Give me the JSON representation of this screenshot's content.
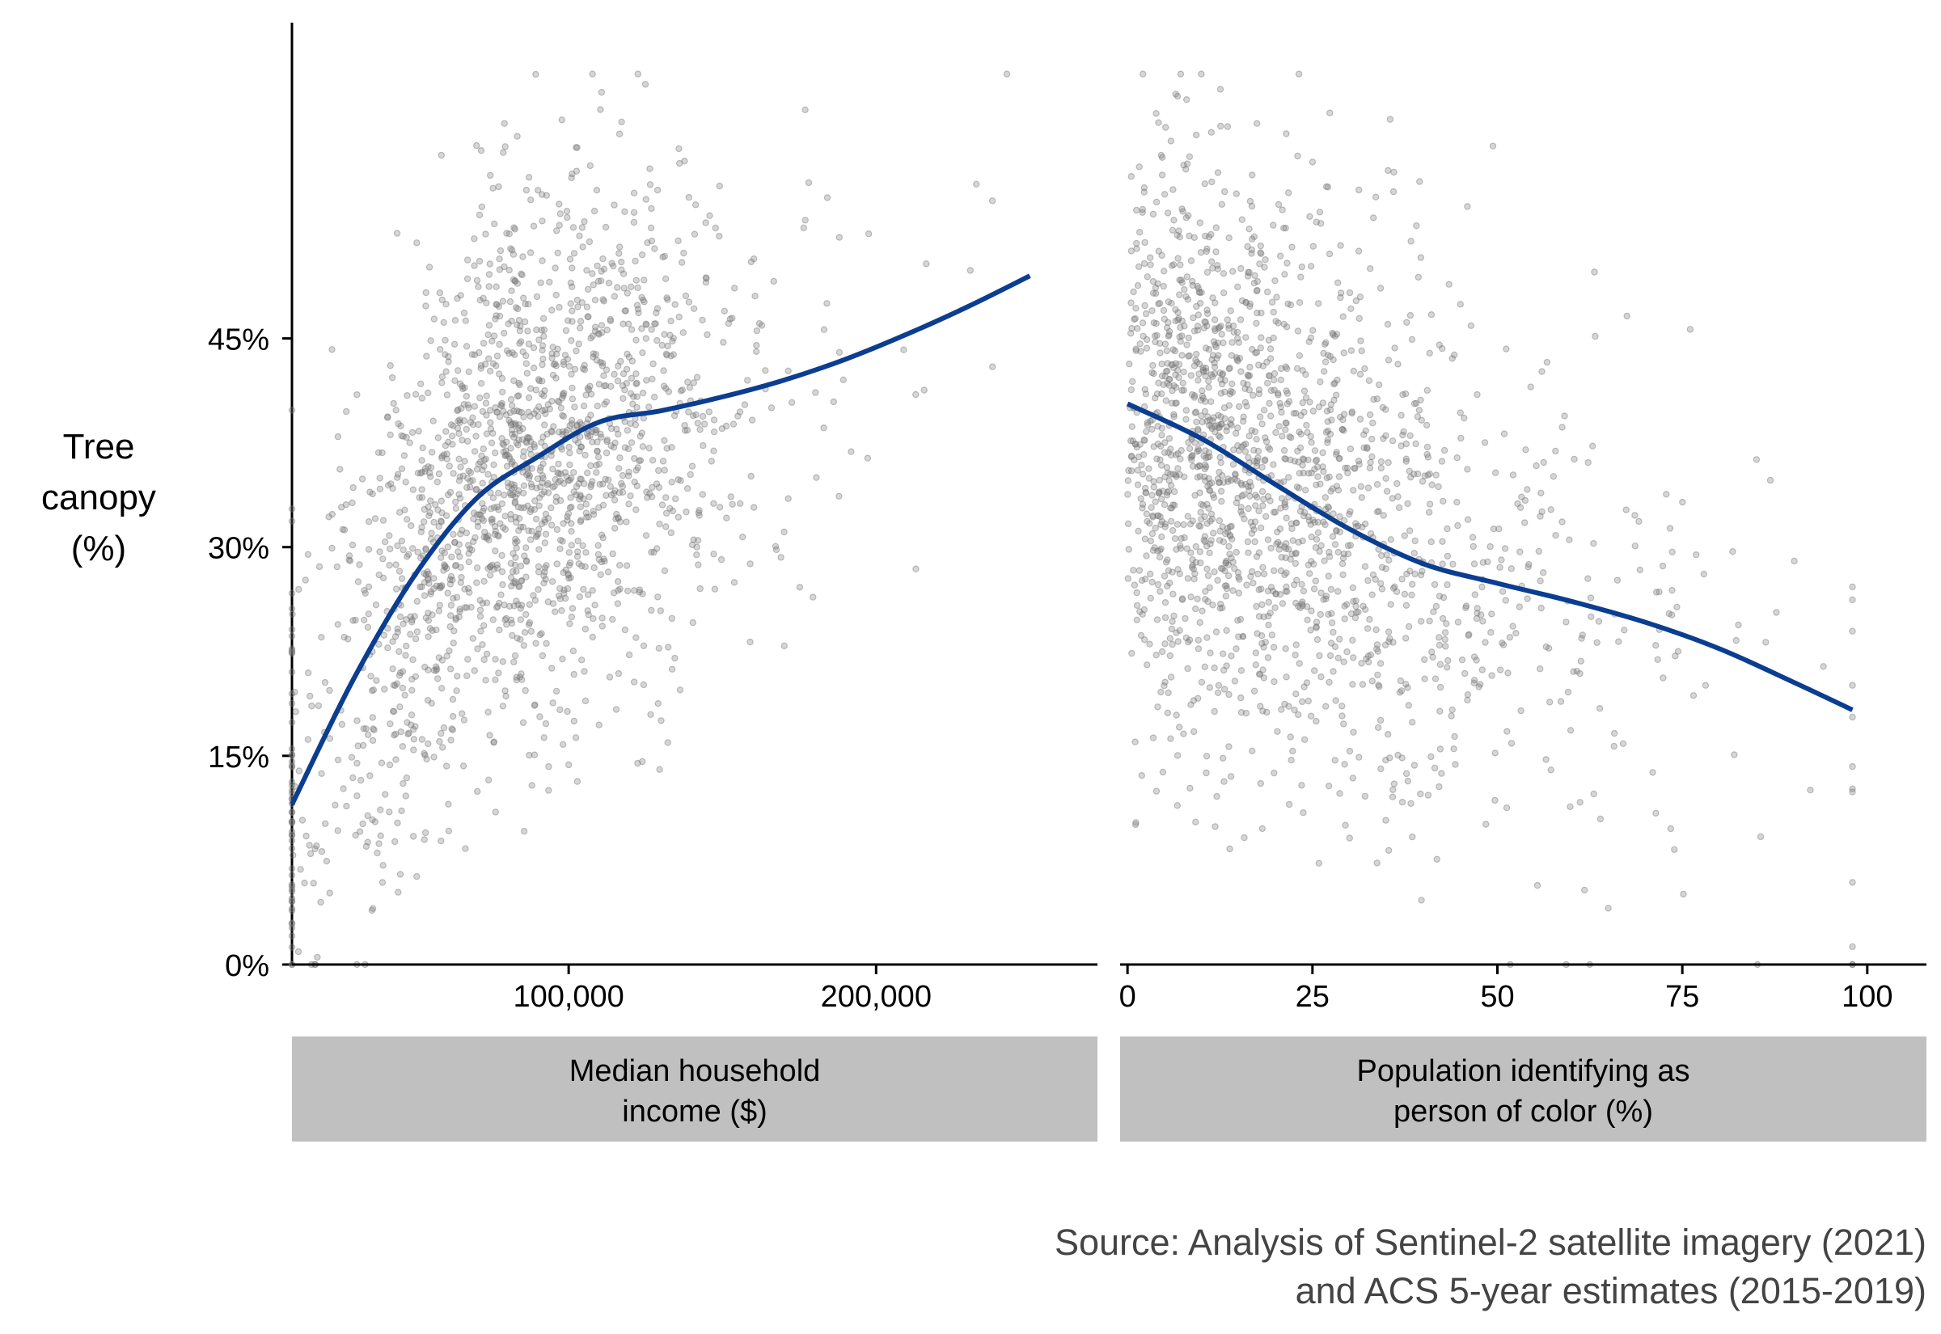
{
  "chart_data": {
    "type": "scatter",
    "y_axis": {
      "label_lines": [
        "Tree",
        "canopy",
        "(%)"
      ],
      "ticks": [
        0,
        15,
        30,
        45
      ],
      "tick_labels": [
        "0%",
        "15%",
        "30%",
        "45%"
      ],
      "range": [
        0,
        67
      ]
    },
    "panels": [
      {
        "strip_lines": [
          "Median household",
          "income ($)"
        ],
        "x_range": [
          10000,
          272000
        ],
        "x_ticks": [
          100000,
          200000
        ],
        "x_tick_labels": [
          "100,000",
          "200,000"
        ],
        "points": {
          "seed": 11,
          "x_center": 85000,
          "x_spread": 40000,
          "x_min": 10000,
          "x_max": 250000,
          "y_spread": 9.5,
          "y_min": 0,
          "y_max": 64
        },
        "trend": {
          "x": [
            10000,
            30000,
            50000,
            70000,
            90000,
            110000,
            130000,
            150000,
            170000,
            190000,
            210000,
            230000,
            250000
          ],
          "y": [
            11.5,
            20.5,
            28,
            33.5,
            36.5,
            39,
            39.8,
            40.8,
            42,
            43.5,
            45.3,
            47.3,
            49.5
          ]
        }
      },
      {
        "strip_lines": [
          "Population identifying as",
          "person of color (%)"
        ],
        "x_range": [
          -1,
          108
        ],
        "x_ticks": [
          0,
          25,
          50,
          75,
          100
        ],
        "x_tick_labels": [
          "0",
          "25",
          "50",
          "75",
          "100"
        ],
        "points": {
          "seed": 23,
          "x_center": 18,
          "x_spread": 24,
          "x_min": 0,
          "x_max": 98,
          "y_spread": 10,
          "y_min": 0,
          "y_max": 64
        },
        "trend": {
          "x": [
            0,
            10,
            20,
            30,
            40,
            50,
            60,
            70,
            80,
            90,
            98
          ],
          "y": [
            40.3,
            37.8,
            34.5,
            31.3,
            28.8,
            27.4,
            26.1,
            24.6,
            22.7,
            20.3,
            18.3
          ]
        }
      }
    ],
    "n_points_per_panel": 1800,
    "colors": {
      "point": "#777777",
      "trend": "#0b3d91",
      "strip": "#c0c0c0"
    },
    "caption_lines": [
      "Source: Analysis of Sentinel-2 satellite imagery (2021)",
      "and ACS 5-year estimates (2015-2019)"
    ]
  }
}
